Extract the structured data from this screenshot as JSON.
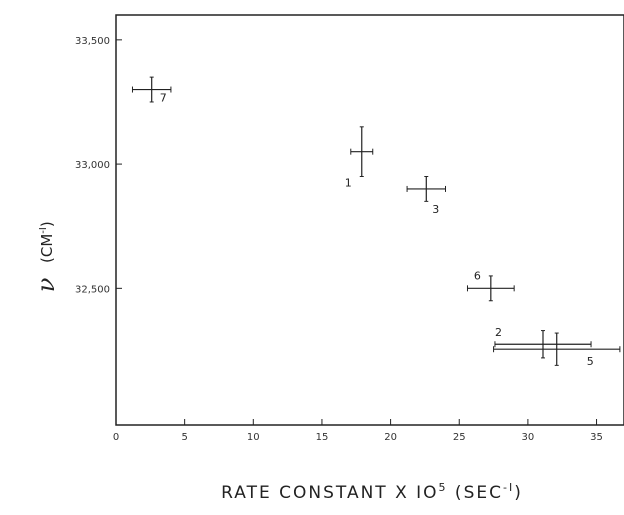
{
  "chart_data": {
    "type": "scatter",
    "xlabel_parts": {
      "main": "RATE  CONSTANT  X  IO",
      "exp": "5",
      "unit_pre": " (SEC",
      "unit_exp": "-I",
      "unit_post": ")"
    },
    "ylabel_parts": {
      "symbol": "ν",
      "unit_pre": "(CM",
      "unit_exp": "-I",
      "unit_post": ")"
    },
    "xlim": [
      0,
      37
    ],
    "ylim": [
      31950,
      33600
    ],
    "x_ticks": [
      0,
      5,
      10,
      15,
      20,
      25,
      30,
      35
    ],
    "x_tick_labels": [
      "0",
      "5",
      "10",
      "15",
      "20",
      "25",
      "30",
      "35"
    ],
    "y_ticks": [
      32500,
      33000,
      33500
    ],
    "y_tick_labels": [
      "32,500",
      "33,000",
      "33,500"
    ],
    "grid": false,
    "points": [
      {
        "label": "7",
        "x": 2.6,
        "x_err": 1.4,
        "y": 33300,
        "y_err": 50
      },
      {
        "label": "1",
        "x": 17.9,
        "x_err": 0.8,
        "y": 33050,
        "y_err": 100
      },
      {
        "label": "3",
        "x": 22.6,
        "x_err": 1.4,
        "y": 32900,
        "y_err": 50
      },
      {
        "label": "6",
        "x": 27.3,
        "x_err": 1.7,
        "y": 32500,
        "y_err": 50
      },
      {
        "label": "2",
        "x": 31.1,
        "x_err": 3.5,
        "y": 32275,
        "y_err": 55
      },
      {
        "label": "5",
        "x": 32.1,
        "x_err": 4.6,
        "y": 32255,
        "y_err": 65
      }
    ]
  }
}
